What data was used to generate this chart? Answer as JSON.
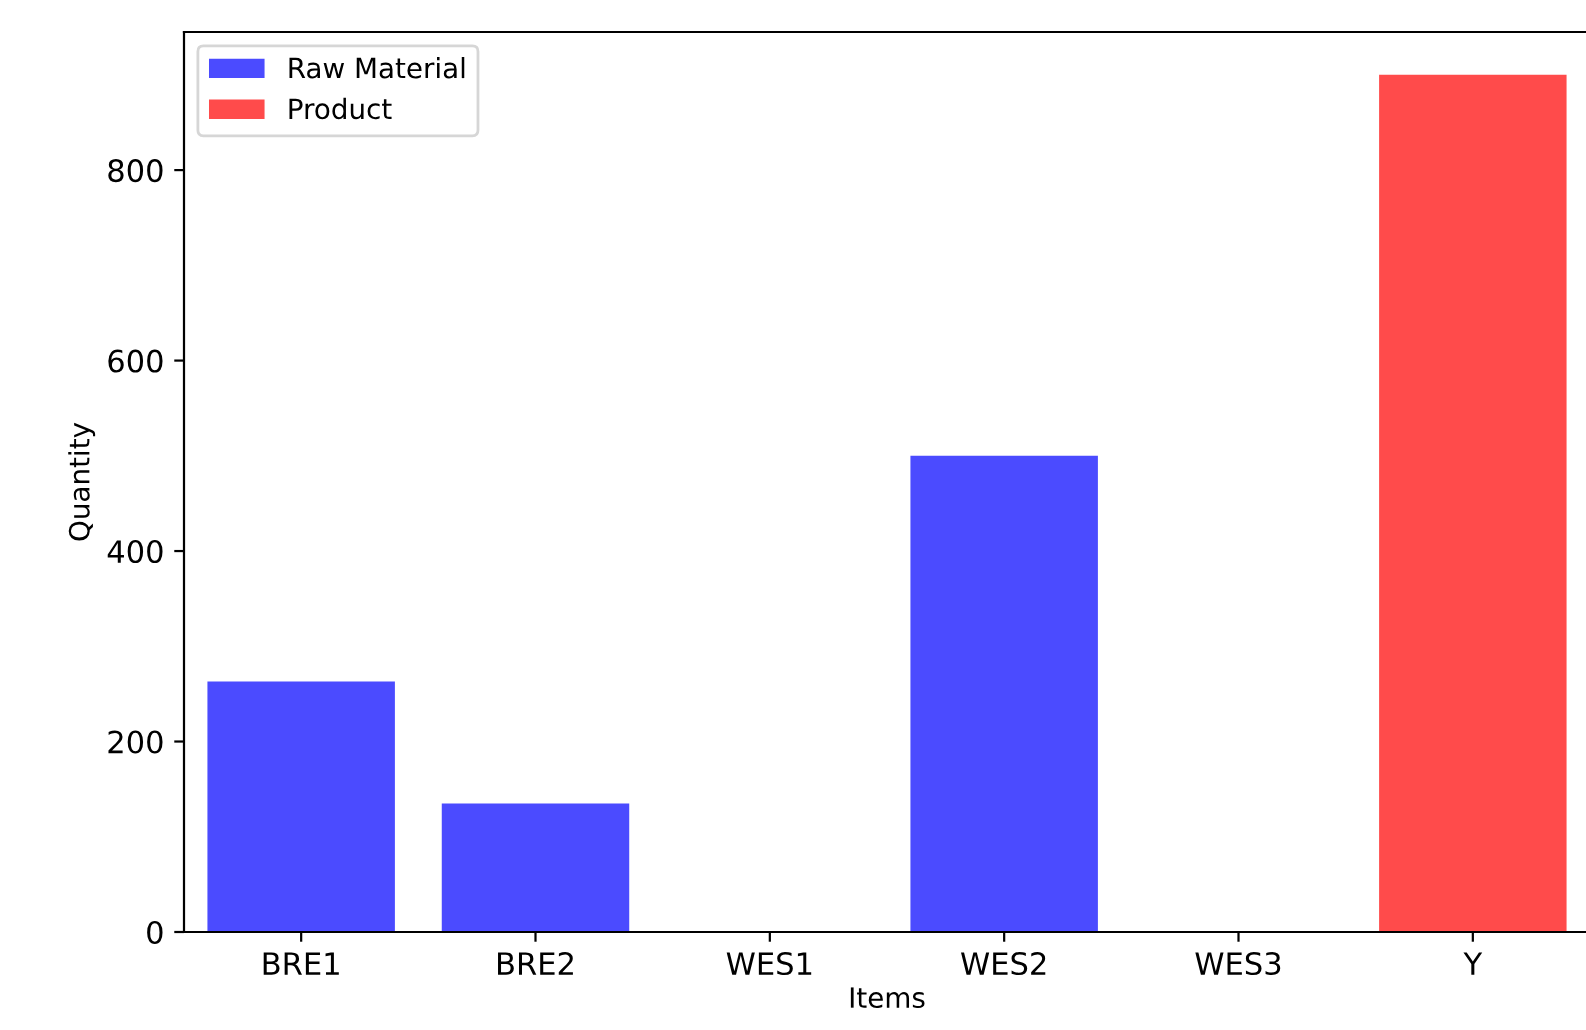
{
  "chart_data": {
    "type": "bar",
    "xlabel": "Items",
    "ylabel": "Quantity",
    "categories": [
      "BRE1",
      "BRE2",
      "WES1",
      "WES2",
      "WES3",
      "Y"
    ],
    "series": [
      {
        "name": "Raw Material",
        "color": "#4b4bff",
        "values": [
          263,
          135,
          0,
          500,
          0,
          null
        ]
      },
      {
        "name": "Product",
        "color": "#ff4b4b",
        "values": [
          null,
          null,
          null,
          null,
          null,
          900
        ]
      }
    ],
    "ylim": [
      0,
      945
    ],
    "yticks": [
      0,
      200,
      400,
      600,
      800
    ],
    "grid": false,
    "legend": "top left"
  }
}
